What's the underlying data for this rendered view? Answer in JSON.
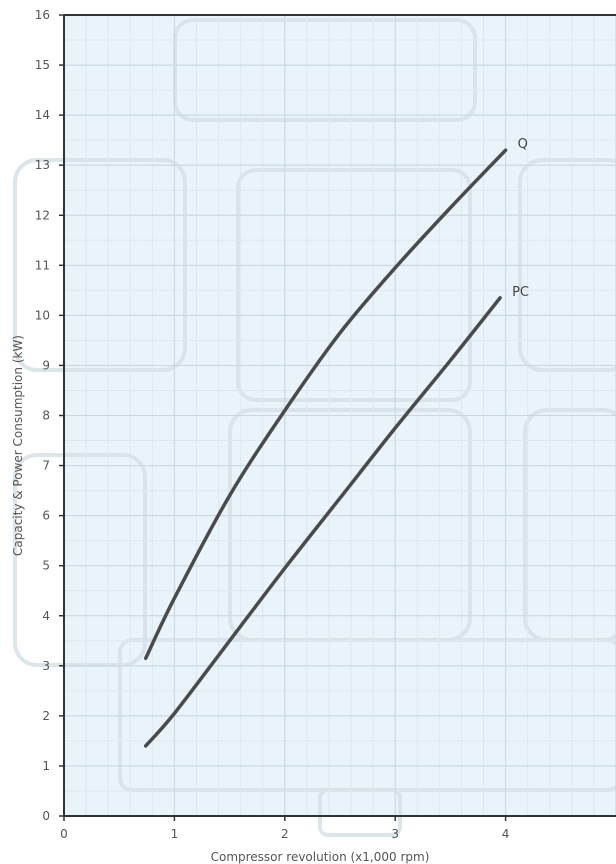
{
  "chart_data": {
    "type": "line",
    "title": "",
    "xlabel": "Compressor revolution (x1,000 rpm)",
    "ylabel": "Capacity & Power Consumption (kW)",
    "xlim": [
      0,
      5
    ],
    "ylim": [
      0,
      16
    ],
    "x_ticks": [
      "0",
      "1",
      "2",
      "3",
      "4"
    ],
    "y_ticks": [
      "0",
      "1",
      "2",
      "3",
      "4",
      "5",
      "6",
      "7",
      "8",
      "9",
      "10",
      "11",
      "12",
      "13",
      "14",
      "15",
      "16"
    ],
    "grid": true,
    "legend": "none",
    "series": [
      {
        "name": "Q",
        "x": [
          0.74,
          1.0,
          1.5,
          2.0,
          2.5,
          3.0,
          3.5,
          4.0
        ],
        "y": [
          3.15,
          4.35,
          6.4,
          8.1,
          9.65,
          10.95,
          12.15,
          13.3
        ]
      },
      {
        "name": "PC",
        "x": [
          0.74,
          1.0,
          1.5,
          2.0,
          2.5,
          3.0,
          3.5,
          3.95
        ],
        "y": [
          1.4,
          2.05,
          3.5,
          4.95,
          6.35,
          7.75,
          9.1,
          10.35
        ]
      }
    ],
    "colors": {
      "background": "#e8f3fa",
      "grid_major": "#c9d6de",
      "grid_minor": "#dde8ee",
      "axis": "#333333",
      "line": "#4a4a4a"
    }
  }
}
